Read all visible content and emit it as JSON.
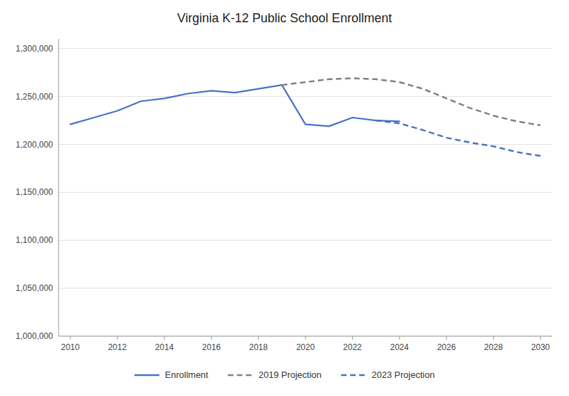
{
  "chart_data": {
    "type": "line",
    "title": "Virginia K-12 Public School Enrollment",
    "series": [
      {
        "name": "Enrollment",
        "color": "#4472C4",
        "line_style": "solid",
        "x": [
          2010,
          2011,
          2012,
          2013,
          2014,
          2015,
          2016,
          2017,
          2018,
          2019,
          2020,
          2021,
          2022,
          2023,
          2024
        ],
        "values": [
          1221000,
          1228000,
          1235000,
          1245000,
          1248000,
          1253000,
          1256000,
          1254000,
          1258000,
          1262000,
          1221000,
          1219000,
          1228000,
          1225000,
          1224000
        ]
      },
      {
        "name": "2019 Projection",
        "color": "#808080",
        "line_style": "dashed",
        "x": [
          2019,
          2020,
          2021,
          2022,
          2023,
          2024,
          2025,
          2026,
          2027,
          2028,
          2029,
          2030
        ],
        "values": [
          1262000,
          1265000,
          1268000,
          1269000,
          1268000,
          1265000,
          1258000,
          1248000,
          1238000,
          1230000,
          1224000,
          1220000
        ]
      },
      {
        "name": "2023 Projection",
        "color": "#4472C4",
        "line_style": "dashed",
        "x": [
          2023,
          2024,
          2025,
          2026,
          2027,
          2028,
          2029,
          2030
        ],
        "values": [
          1225000,
          1222000,
          1215000,
          1207000,
          1202000,
          1198000,
          1192000,
          1188000
        ]
      }
    ],
    "xlim": [
      2009.5,
      2030.5
    ],
    "xticks": [
      2010,
      2012,
      2014,
      2016,
      2018,
      2020,
      2022,
      2024,
      2026,
      2028,
      2030
    ],
    "ylim": [
      1000000,
      1310000
    ],
    "yticks": [
      {
        "value": 1000000,
        "label": "1,000,000"
      },
      {
        "value": 1050000,
        "label": "1,050,000"
      },
      {
        "value": 1100000,
        "label": "1,100,000"
      },
      {
        "value": 1150000,
        "label": "1,150,000"
      },
      {
        "value": 1200000,
        "label": "1,200,000"
      },
      {
        "value": 1250000,
        "label": "1,250,000"
      },
      {
        "value": 1300000,
        "label": "1,300,000"
      }
    ],
    "grid": true,
    "legend": "bottom"
  }
}
